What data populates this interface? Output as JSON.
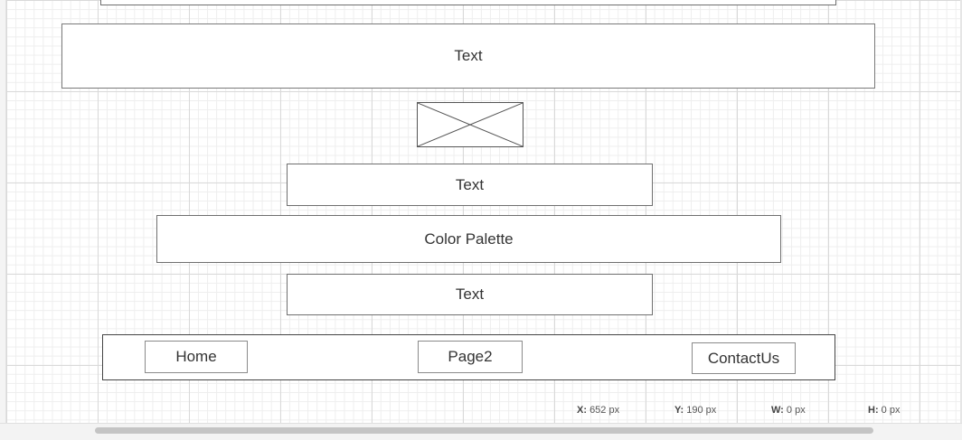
{
  "canvas": {
    "header_text": "Text",
    "image_placeholder_icon": "image-placeholder-x",
    "text_block_1": "Text",
    "color_palette": "Color Palette",
    "text_block_2": "Text",
    "nav": {
      "items": [
        {
          "label": "Home"
        },
        {
          "label": "Page2"
        },
        {
          "label": "ContactUs"
        }
      ]
    }
  },
  "status": {
    "x_label": "X:",
    "x_value": "652 px",
    "y_label": "Y:",
    "y_value": "190 px",
    "w_label": "W:",
    "w_value": "0 px",
    "h_label": "H:",
    "h_value": "0 px"
  }
}
